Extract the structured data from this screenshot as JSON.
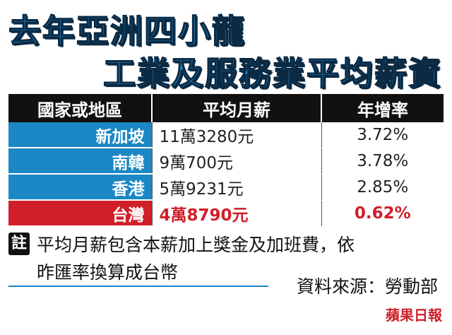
{
  "title": [
    "去年亞洲四小龍",
    "工業及服務業平均薪資"
  ],
  "table": {
    "header": [
      "國家或地區",
      "平均月薪",
      "年增率"
    ],
    "rows": [
      [
        "新加坡",
        "11萬3280元",
        "3.72%"
      ],
      [
        "南韓",
        "9萬700元",
        "3.78%"
      ],
      [
        "香港",
        "5萬9231元",
        "2.85%"
      ],
      [
        "台灣",
        "4萬8790元",
        "0.62%"
      ]
    ]
  },
  "note": {
    "marker": "註",
    "lines": [
      "平均月薪包含本薪加上獎金及加班費，依",
      "昨匯率換算成台幣"
    ]
  },
  "source": "資料來源：勞動部",
  "logo": "蘋果日報"
}
